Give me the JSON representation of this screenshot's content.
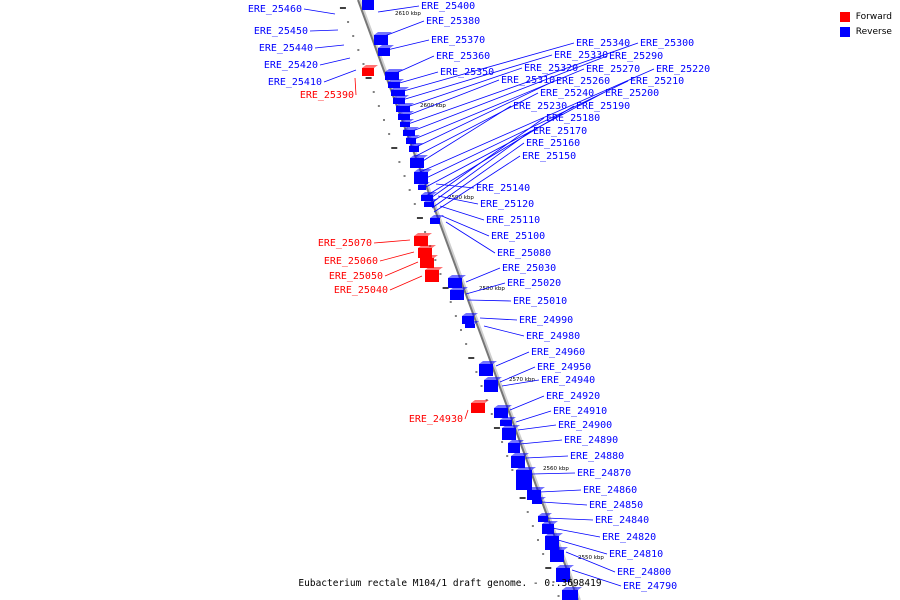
{
  "caption": "Eubacterium rectale M104/1 draft genome. - 0..3698419",
  "legend": [
    {
      "label": "Forward",
      "color": "#ff0000"
    },
    {
      "label": "Reverse",
      "color": "#0000ff"
    }
  ],
  "colors": {
    "forward": "#ff0000",
    "reverse": "#0000ff",
    "axis": "#777777"
  },
  "ticks": [
    "2610 kbp",
    "2600 kbp",
    "2590 kbp",
    "2580 kbp",
    "2570 kbp",
    "2560 kbp",
    "2550 kbp"
  ],
  "forward_genes": [
    "ERE_25390",
    "ERE_25070",
    "ERE_25060",
    "ERE_25050",
    "ERE_25040",
    "ERE_24930"
  ],
  "reverse_left_genes": [
    "ERE_25460",
    "ERE_25450",
    "ERE_25440",
    "ERE_25420",
    "ERE_25410"
  ],
  "reverse_genes": [
    "ERE_25400",
    "ERE_25380",
    "ERE_25370",
    "ERE_25360",
    "ERE_25350",
    "ERE_25340",
    "ERE_25330",
    "ERE_25320",
    "ERE_25310",
    "ERE_25300",
    "ERE_25290",
    "ERE_25270",
    "ERE_25260",
    "ERE_25240",
    "ERE_25230",
    "ERE_25220",
    "ERE_25210",
    "ERE_25200",
    "ERE_25190",
    "ERE_25180",
    "ERE_25170",
    "ERE_25160",
    "ERE_25150",
    "ERE_25140",
    "ERE_25120",
    "ERE_25110",
    "ERE_25100",
    "ERE_25080",
    "ERE_25030",
    "ERE_25020",
    "ERE_25010",
    "ERE_24990",
    "ERE_24980",
    "ERE_24960",
    "ERE_24950",
    "ERE_24940",
    "ERE_24920",
    "ERE_24910",
    "ERE_24900",
    "ERE_24890",
    "ERE_24880",
    "ERE_24870",
    "ERE_24860",
    "ERE_24850",
    "ERE_24840",
    "ERE_24820",
    "ERE_24810",
    "ERE_24800",
    "ERE_24790"
  ]
}
